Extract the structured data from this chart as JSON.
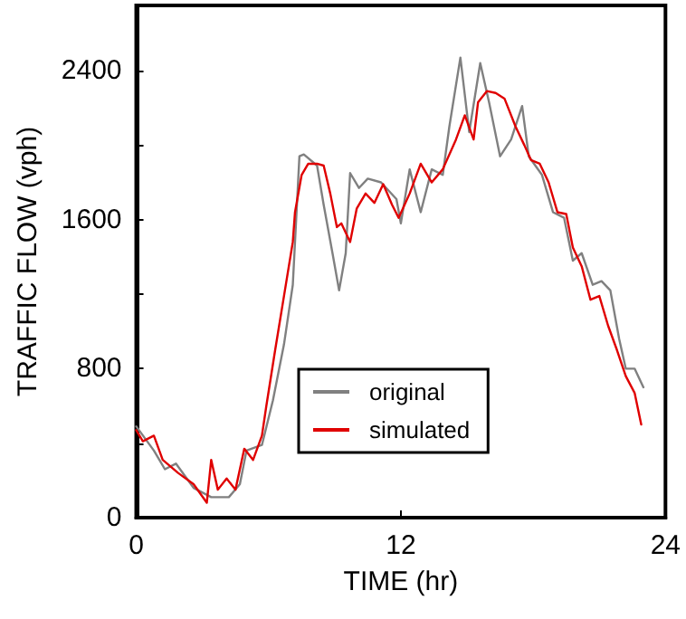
{
  "chart_data": {
    "type": "line",
    "xlabel": "TIME (hr)",
    "ylabel": "TRAFFIC FLOW (vph)",
    "xlim": [
      0,
      24
    ],
    "xticks": [
      0,
      12,
      24
    ],
    "ylim": [
      0,
      2750
    ],
    "yticks": [
      0,
      {
        "value": 400,
        "label": null
      },
      800,
      {
        "value": 1200,
        "label": null
      },
      1600,
      {
        "value": 2000,
        "label": null
      },
      2400
    ],
    "grid": false,
    "legend": "bottom",
    "marker": "none",
    "line_style": "solid",
    "series": [
      {
        "name": "original",
        "color": "#808080",
        "x": [
          0.0,
          0.8,
          1.3,
          1.8,
          2.6,
          3.4,
          4.2,
          4.7,
          5.0,
          5.7,
          6.2,
          6.7,
          7.1,
          7.4,
          7.6,
          8.2,
          8.5,
          8.9,
          9.2,
          9.5,
          9.7,
          10.1,
          10.5,
          11.1,
          11.8,
          12.0,
          12.4,
          12.9,
          13.4,
          13.9,
          14.2,
          14.7,
          15.1,
          15.6,
          16.0,
          16.5,
          17.0,
          17.5,
          17.8,
          18.4,
          18.9,
          19.4,
          19.8,
          20.2,
          20.7,
          21.1,
          21.5,
          21.9,
          22.2,
          22.6,
          23.0
        ],
        "values": [
          490,
          360,
          260,
          290,
          160,
          110,
          110,
          180,
          360,
          390,
          630,
          930,
          1250,
          1940,
          1950,
          1890,
          1680,
          1420,
          1220,
          1420,
          1850,
          1770,
          1820,
          1800,
          1710,
          1580,
          1870,
          1640,
          1870,
          1840,
          2100,
          2470,
          2070,
          2440,
          2230,
          1940,
          2030,
          2210,
          1940,
          1840,
          1640,
          1610,
          1380,
          1420,
          1250,
          1270,
          1220,
          960,
          800,
          800,
          700
        ]
      },
      {
        "name": "simulated",
        "color": "#e00000",
        "x": [
          0.0,
          0.3,
          0.8,
          1.2,
          1.9,
          2.6,
          3.2,
          3.4,
          3.7,
          4.1,
          4.5,
          4.9,
          5.3,
          5.7,
          5.9,
          6.3,
          6.7,
          7.1,
          7.2,
          7.5,
          7.8,
          8.2,
          8.5,
          8.8,
          9.1,
          9.3,
          9.7,
          10.0,
          10.4,
          10.8,
          11.2,
          11.6,
          11.9,
          12.4,
          12.9,
          13.4,
          13.9,
          14.5,
          14.9,
          15.3,
          15.5,
          15.9,
          16.3,
          16.7,
          17.2,
          17.6,
          17.9,
          18.3,
          18.7,
          19.1,
          19.5,
          19.8,
          20.2,
          20.6,
          21.0,
          21.4,
          21.8,
          22.2,
          22.6,
          22.9
        ],
        "values": [
          470,
          410,
          440,
          310,
          240,
          180,
          80,
          310,
          150,
          210,
          150,
          370,
          310,
          440,
          600,
          900,
          1190,
          1480,
          1640,
          1840,
          1900,
          1900,
          1890,
          1740,
          1560,
          1580,
          1480,
          1660,
          1740,
          1690,
          1790,
          1680,
          1610,
          1740,
          1900,
          1800,
          1870,
          2030,
          2160,
          2030,
          2230,
          2290,
          2280,
          2250,
          2100,
          2000,
          1920,
          1900,
          1800,
          1640,
          1630,
          1450,
          1350,
          1170,
          1190,
          1030,
          900,
          760,
          670,
          500
        ]
      }
    ]
  }
}
